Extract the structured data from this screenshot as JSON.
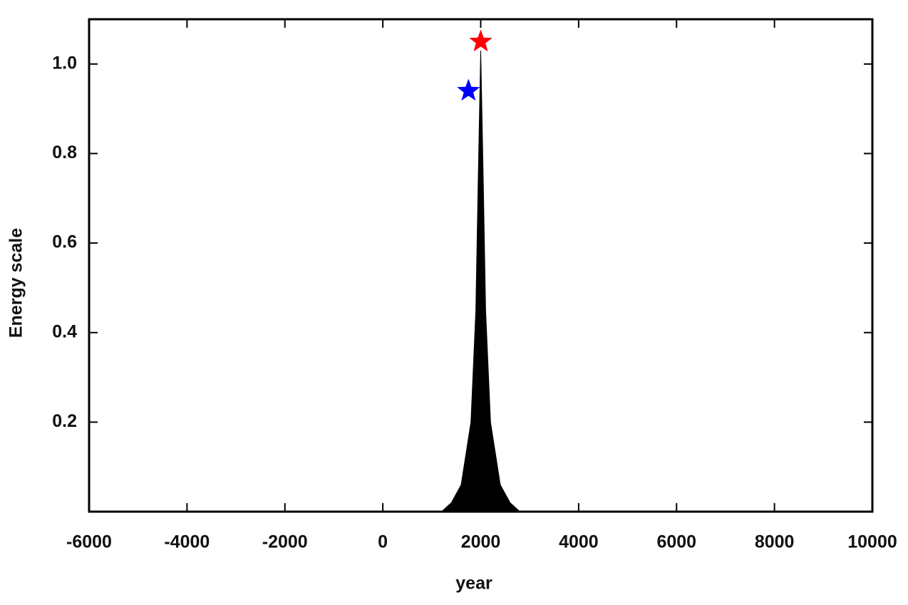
{
  "chart_data": {
    "type": "area",
    "x_label": "year",
    "y_label": "Energy scale",
    "xlim": [
      -6000,
      10000
    ],
    "xticks": [
      -6000,
      -4000,
      -2000,
      0,
      2000,
      4000,
      6000,
      8000,
      10000
    ],
    "ylim": [
      0,
      1.1
    ],
    "yticks": [
      0.2,
      0.4,
      0.6,
      0.8,
      {
        "value": 1,
        "label": "1.0"
      }
    ],
    "series": [
      {
        "color": "#000000",
        "x": [
          1200,
          1400,
          1600,
          1800,
          1900,
          1950,
          2000,
          2050,
          2100,
          2200,
          2400,
          2600,
          2800
        ],
        "values": [
          0,
          0.02,
          0.06,
          0.2,
          0.45,
          0.75,
          1.03,
          0.75,
          0.45,
          0.2,
          0.06,
          0.02,
          0
        ]
      }
    ],
    "stars": [
      {
        "x": 2000,
        "y": 1.05,
        "color": "#ff0000"
      },
      {
        "x": 1750,
        "y": 0.94,
        "color": "#0000ff"
      }
    ]
  }
}
